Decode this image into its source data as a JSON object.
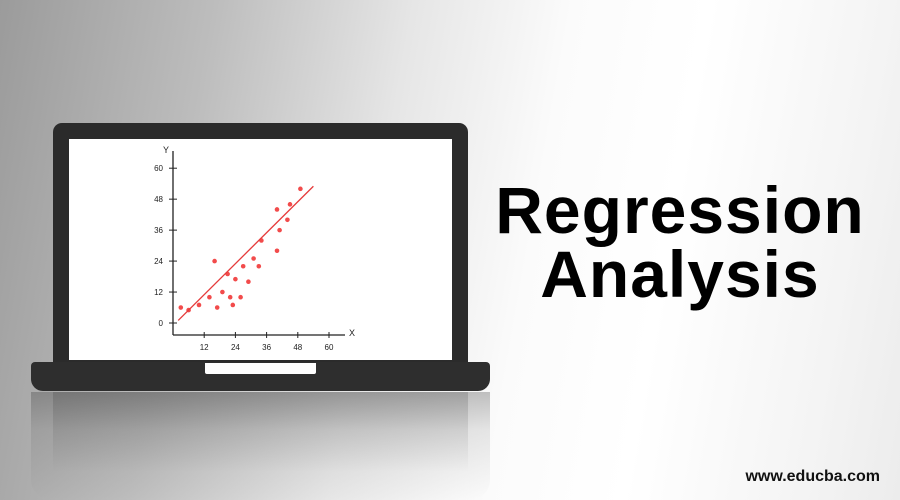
{
  "headline": {
    "line1": "Regression",
    "line2": "Analysis"
  },
  "website": "www.educba.com",
  "colors": {
    "laptop_body": "#2b2b2b",
    "screen": "#ffffff",
    "points": "#f24b4b",
    "fit_line": "#e53b3b",
    "axis": "#222222"
  },
  "chart_data": {
    "type": "scatter",
    "title": "",
    "xlabel": "X",
    "ylabel": "Y",
    "xlim": [
      0,
      64
    ],
    "ylim": [
      0,
      64
    ],
    "x_ticks": [
      12,
      24,
      36,
      48,
      60
    ],
    "y_ticks": [
      0,
      12,
      24,
      36,
      48,
      60
    ],
    "points": [
      [
        3,
        6
      ],
      [
        6,
        5
      ],
      [
        10,
        7
      ],
      [
        14,
        10
      ],
      [
        16,
        24
      ],
      [
        17,
        6
      ],
      [
        19,
        12
      ],
      [
        21,
        19
      ],
      [
        22,
        10
      ],
      [
        23,
        7
      ],
      [
        24,
        17
      ],
      [
        26,
        10
      ],
      [
        27,
        22
      ],
      [
        29,
        16
      ],
      [
        31,
        25
      ],
      [
        33,
        22
      ],
      [
        34,
        32
      ],
      [
        40,
        28
      ],
      [
        40,
        44
      ],
      [
        41,
        36
      ],
      [
        44,
        40
      ],
      [
        45,
        46
      ],
      [
        49,
        52
      ]
    ],
    "trend_line": {
      "from": [
        2,
        1
      ],
      "to": [
        54,
        53
      ]
    },
    "grid": false
  }
}
